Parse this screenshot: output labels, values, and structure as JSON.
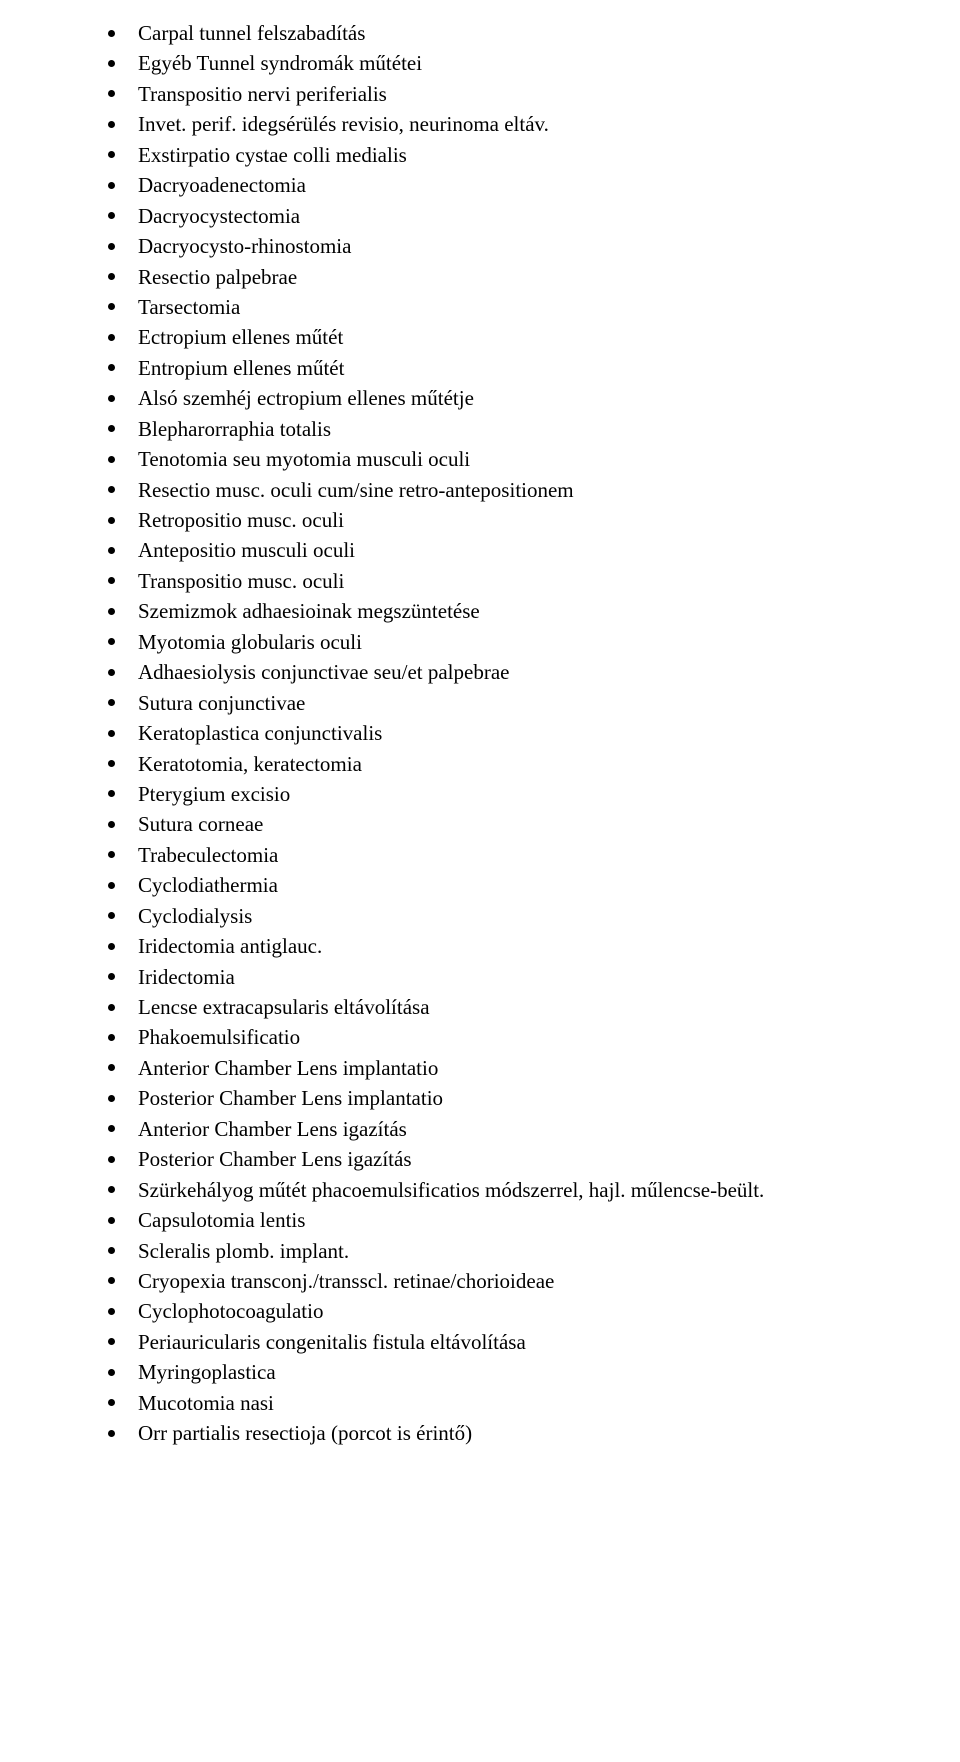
{
  "document": {
    "font_family": "Times New Roman",
    "font_size_pt": 16,
    "text_color": "#000000",
    "background_color": "#ffffff",
    "bullet_color": "#000000",
    "items": [
      "Carpal tunnel felszabadítás",
      "Egyéb Tunnel syndromák műtétei",
      "Transpositio nervi periferialis",
      "Invet. perif. idegsérülés revisio, neurinoma eltáv.",
      "Exstirpatio cystae colli medialis",
      "Dacryoadenectomia",
      "Dacryocystectomia",
      "Dacryocysto-rhinostomia",
      "Resectio palpebrae",
      "Tarsectomia",
      "Ectropium ellenes műtét",
      "Entropium ellenes műtét",
      "Alsó szemhéj ectropium ellenes műtétje",
      "Blepharorraphia totalis",
      "Tenotomia seu myotomia musculi oculi",
      "Resectio musc. oculi cum/sine retro-antepositionem",
      "Retropositio musc. oculi",
      "Antepositio musculi oculi",
      "Transpositio musc. oculi",
      "Szemizmok adhaesioinak megszüntetése",
      "Myotomia globularis oculi",
      "Adhaesiolysis conjunctivae seu/et palpebrae",
      "Sutura conjunctivae",
      "Keratoplastica conjunctivalis",
      "Keratotomia, keratectomia",
      "Pterygium excisio",
      "Sutura corneae",
      "Trabeculectomia",
      "Cyclodiathermia",
      "Cyclodialysis",
      "Iridectomia antiglauc.",
      "Iridectomia",
      "Lencse extracapsularis eltávolítása",
      "Phakoemulsificatio",
      "Anterior Chamber Lens implantatio",
      "Posterior Chamber Lens implantatio",
      "Anterior Chamber Lens igazítás",
      "Posterior Chamber Lens igazítás",
      "Szürkehályog műtét phacoemulsificatios módszerrel, hajl. műlencse-beült.",
      "Capsulotomia lentis",
      "Scleralis plomb. implant.",
      "Cryopexia transconj./transscl. retinae/chorioideae",
      "Cyclophotocoagulatio",
      "Periauricularis congenitalis fistula eltávolítása",
      "Myringoplastica",
      "Mucotomia nasi",
      "Orr partialis resectioja (porcot is érintő)"
    ]
  }
}
